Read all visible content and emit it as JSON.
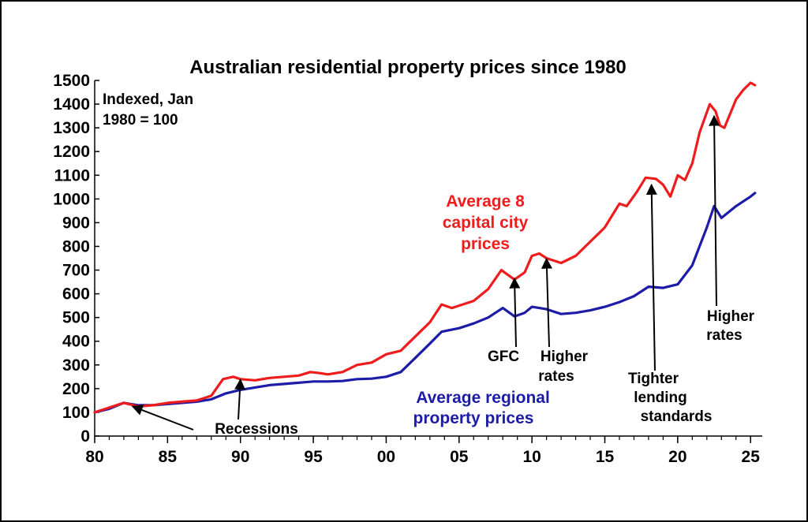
{
  "chart_data": {
    "type": "line",
    "title": "Australian residential property prices since 1980",
    "note_lines": [
      "Indexed, Jan",
      "1980 = 100"
    ],
    "xlabel": "",
    "ylabel": "",
    "xlim": [
      80,
      125.8
    ],
    "ylim": [
      0,
      1500
    ],
    "x_ticks": [
      80,
      85,
      90,
      95,
      100,
      105,
      110,
      115,
      120,
      125
    ],
    "x_tick_labels": [
      "80",
      "85",
      "90",
      "95",
      "00",
      "05",
      "10",
      "15",
      "20",
      "25"
    ],
    "y_ticks": [
      0,
      100,
      200,
      300,
      400,
      500,
      600,
      700,
      800,
      900,
      1000,
      1100,
      1200,
      1300,
      1400,
      1500
    ],
    "grid": false,
    "colors": {
      "capital": "#ee1c1c",
      "regional": "#1c1ca8",
      "annotation": "#000000"
    },
    "series": [
      {
        "key": "capital",
        "label_lines": [
          "Average 8",
          "capital city",
          "prices"
        ],
        "x": [
          80,
          81,
          82,
          83,
          84,
          85,
          86,
          87,
          88,
          88.8,
          89.5,
          90,
          91,
          92,
          93,
          94,
          94.8,
          95.5,
          96,
          97,
          98,
          99,
          100,
          101,
          101.5,
          102,
          103,
          103.8,
          104.5,
          105,
          106,
          107,
          107.9,
          108.8,
          109.5,
          110,
          110.5,
          111,
          112,
          113,
          114,
          115,
          116,
          116.5,
          117.2,
          117.8,
          118.5,
          119,
          119.5,
          120,
          120.5,
          121,
          121.5,
          122.2,
          122.6,
          122.9,
          123.2,
          123.6,
          124,
          124.5,
          125,
          125.3
        ],
        "values": [
          100,
          120,
          140,
          125,
          130,
          140,
          145,
          150,
          170,
          240,
          250,
          240,
          235,
          245,
          250,
          255,
          270,
          265,
          260,
          270,
          300,
          310,
          345,
          360,
          390,
          420,
          480,
          555,
          540,
          550,
          570,
          620,
          700,
          660,
          690,
          760,
          770,
          750,
          730,
          760,
          820,
          880,
          980,
          970,
          1030,
          1090,
          1085,
          1060,
          1010,
          1100,
          1080,
          1150,
          1280,
          1400,
          1370,
          1310,
          1300,
          1360,
          1420,
          1460,
          1490,
          1480
        ]
      },
      {
        "key": "regional",
        "label_lines": [
          "Average regional",
          "property prices"
        ],
        "x": [
          80,
          81,
          82,
          83,
          84,
          85,
          86,
          87,
          88,
          89,
          90,
          91,
          92,
          93,
          94,
          95,
          96,
          97,
          98,
          99,
          100,
          101,
          102,
          103,
          103.8,
          105,
          106,
          107,
          108,
          108.8,
          109.5,
          110,
          111,
          112,
          113,
          114,
          115,
          116,
          117,
          118,
          119,
          120,
          121,
          122,
          122.5,
          123,
          124,
          125,
          125.3
        ],
        "values": [
          100,
          115,
          140,
          130,
          130,
          135,
          140,
          145,
          155,
          180,
          195,
          205,
          215,
          220,
          225,
          230,
          230,
          232,
          240,
          242,
          250,
          270,
          330,
          390,
          440,
          455,
          475,
          500,
          540,
          505,
          520,
          545,
          535,
          515,
          520,
          530,
          545,
          565,
          590,
          630,
          625,
          640,
          720,
          880,
          970,
          920,
          970,
          1010,
          1025
        ]
      }
    ],
    "annotations": [
      {
        "label_lines": [
          "Recessions"
        ],
        "points_to": [
          [
            82.6,
            125
          ],
          [
            90.0,
            238
          ]
        ]
      },
      {
        "label_lines": [
          "GFC"
        ],
        "points_to": [
          [
            108.8,
            665
          ]
        ]
      },
      {
        "label_lines": [
          "Higher",
          "rates"
        ],
        "points_to": [
          [
            111.0,
            748
          ]
        ]
      },
      {
        "label_lines": [
          "Tighter",
          "lending",
          "standards"
        ],
        "points_to": [
          [
            118.2,
            1060
          ]
        ]
      },
      {
        "label_lines": [
          "Higher",
          "rates"
        ],
        "points_to": [
          [
            122.5,
            1350
          ]
        ]
      }
    ]
  }
}
